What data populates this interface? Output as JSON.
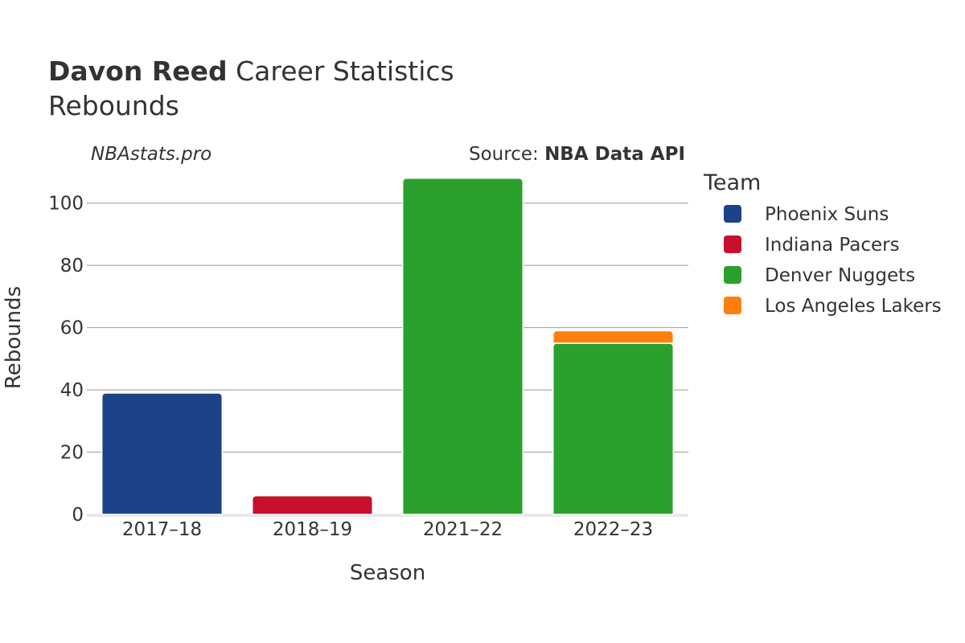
{
  "header": {
    "player_name": "Davon Reed",
    "title_rest": " Career Statistics",
    "subtitle": "Rebounds"
  },
  "watermark": "NBAstats.pro",
  "source": {
    "prefix": "Source: ",
    "name": "NBA Data API"
  },
  "legend": {
    "title": "Team",
    "placement": "right"
  },
  "colors": {
    "Phoenix Suns": "#1d428a",
    "Indiana Pacers": "#c8102e",
    "Denver Nuggets": "#2ca02c",
    "Los Angeles Lakers": "#ff7f0e"
  },
  "chart_data": {
    "type": "bar",
    "stacked": true,
    "title": "Davon Reed Career Statistics",
    "subtitle": "Rebounds",
    "xlabel": "Season",
    "ylabel": "Rebounds",
    "categories": [
      "2017–18",
      "2018–19",
      "2021–22",
      "2022–23"
    ],
    "ylim": [
      0,
      110
    ],
    "yticks": [
      0,
      20,
      40,
      60,
      80,
      100
    ],
    "grid": true,
    "series": [
      {
        "name": "Phoenix Suns",
        "values": [
          39,
          0,
          0,
          0
        ]
      },
      {
        "name": "Indiana Pacers",
        "values": [
          0,
          6,
          0,
          0
        ]
      },
      {
        "name": "Denver Nuggets",
        "values": [
          0,
          0,
          108,
          55
        ]
      },
      {
        "name": "Los Angeles Lakers",
        "values": [
          0,
          0,
          0,
          4
        ]
      }
    ]
  }
}
